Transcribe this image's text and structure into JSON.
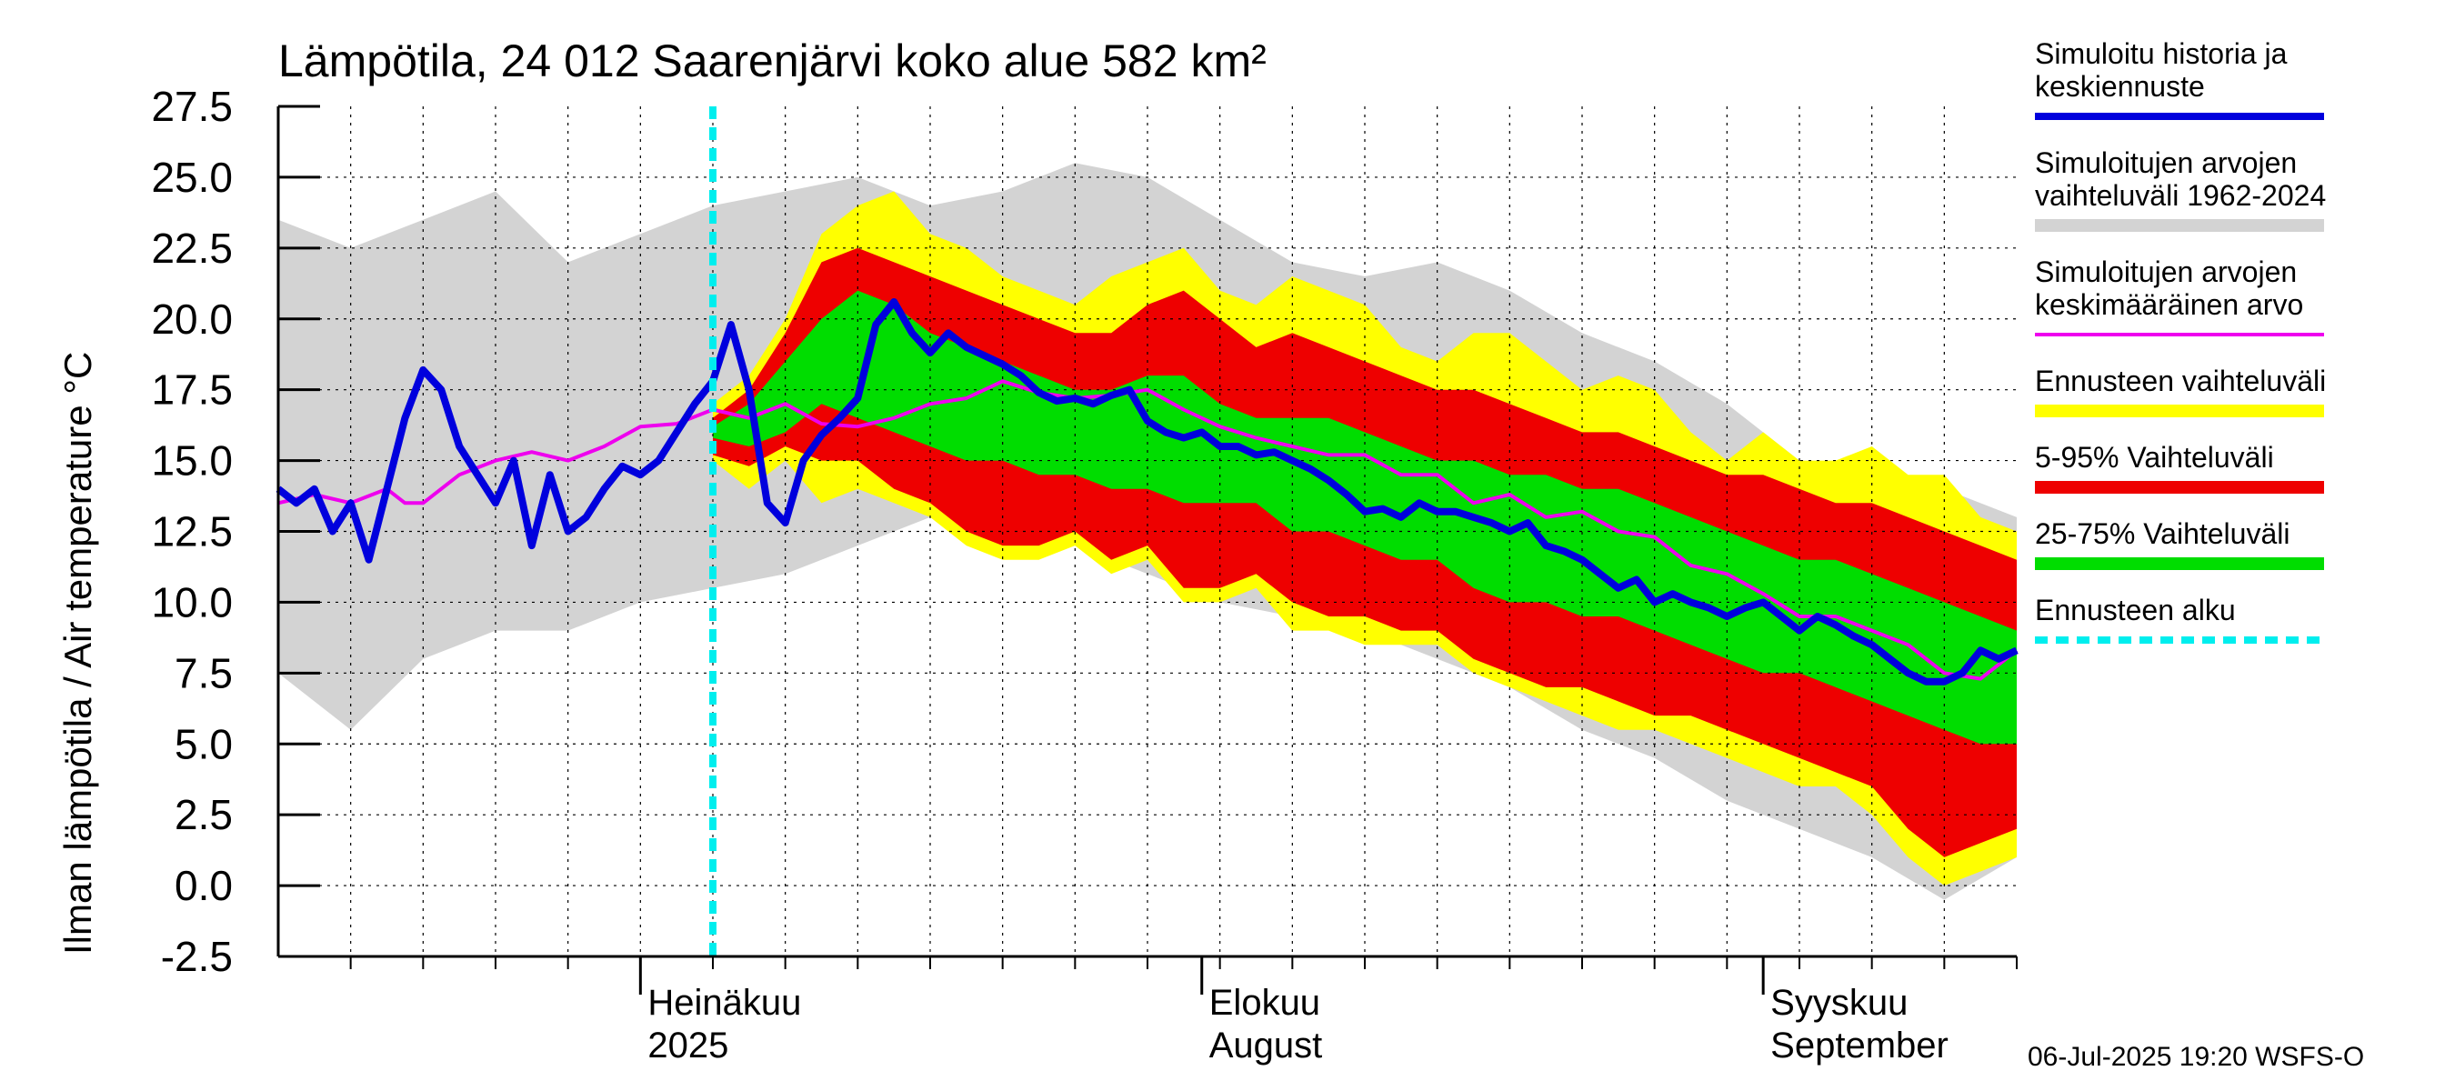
{
  "chart_data": {
    "type": "area",
    "title": "Lämpötila, 24 012 Saarenjärvi koko alue 582 km²",
    "ylabel": "Ilman lämpötila / Air temperature   °C",
    "xlabel": "",
    "ylim": [
      -2.5,
      27.5
    ],
    "yticks": [
      "27.5",
      "25.0",
      "22.5",
      "20.0",
      "17.5",
      "15.0",
      "12.5",
      "10.0",
      "7.5",
      "5.0",
      "2.5",
      "0.0",
      "-2.5"
    ],
    "x_day_range": [
      0,
      96
    ],
    "x_month_labels": [
      {
        "line1": "Heinäkuu",
        "line2": "2025",
        "day": 20
      },
      {
        "line1": "Elokuu",
        "line2": "August",
        "day": 51
      },
      {
        "line1": "Syyskuu",
        "line2": "September",
        "day": 82
      }
    ],
    "forecast_start_day": 24,
    "grid": true,
    "legend_position": "right",
    "footer": "06-Jul-2025 19:20 WSFS-O",
    "colors": {
      "history": "#0000dd",
      "hist_range": "#d3d3d3",
      "mean": "#ee00ee",
      "forecast_range": "#ffff00",
      "p5_95": "#ee0000",
      "p25_75": "#00dd00",
      "forecast_start": "#00eeee"
    },
    "legend": [
      {
        "label": "Simuloitu historia ja keskiennuste",
        "key": "history"
      },
      {
        "label": "Simuloitujen arvojen vaihteluväli 1962-2024",
        "key": "hist_range"
      },
      {
        "label": "Simuloitujen arvojen keskimääräinen arvo",
        "key": "mean"
      },
      {
        "label": "Ennusteen vaihteluväli",
        "key": "forecast_range"
      },
      {
        "label": "5-95% Vaihteluväli",
        "key": "p5_95"
      },
      {
        "label": "25-75% Vaihteluväli",
        "key": "p25_75"
      },
      {
        "label": "Ennusteen alku",
        "key": "forecast_start"
      }
    ],
    "series": [
      {
        "key": "hist_range",
        "x": [
          0,
          4,
          8,
          12,
          16,
          20,
          24,
          28,
          32,
          36,
          40,
          44,
          48,
          52,
          56,
          60,
          64,
          68,
          72,
          76,
          80,
          84,
          88,
          92,
          96
        ],
        "upper": [
          23.5,
          22.5,
          23.5,
          24.5,
          22.0,
          23.0,
          24.0,
          24.5,
          25.0,
          24.0,
          24.5,
          25.5,
          25.0,
          23.5,
          22.0,
          21.5,
          22.0,
          21.0,
          19.5,
          18.5,
          17.0,
          15.0,
          14.5,
          14.0,
          13.0
        ],
        "lower": [
          7.5,
          5.5,
          8.0,
          9.0,
          9.0,
          10.0,
          10.5,
          11.0,
          12.0,
          13.0,
          13.0,
          12.0,
          11.0,
          10.0,
          9.5,
          9.0,
          8.0,
          7.0,
          5.5,
          4.5,
          3.0,
          2.0,
          1.0,
          -0.5,
          1.0
        ]
      },
      {
        "key": "forecast_range",
        "x": [
          24,
          26,
          28,
          30,
          32,
          34,
          36,
          38,
          40,
          42,
          44,
          46,
          48,
          50,
          52,
          54,
          56,
          58,
          60,
          62,
          64,
          66,
          68,
          70,
          72,
          74,
          76,
          78,
          80,
          82,
          84,
          86,
          88,
          90,
          92,
          94,
          96
        ],
        "upper": [
          17.0,
          18.0,
          20.0,
          23.0,
          24.0,
          24.5,
          23.0,
          22.5,
          21.5,
          21.0,
          20.5,
          21.5,
          22.0,
          22.5,
          21.0,
          20.5,
          21.5,
          21.0,
          20.5,
          19.0,
          18.5,
          19.5,
          19.5,
          18.5,
          17.5,
          18.0,
          17.5,
          16.0,
          15.0,
          16.0,
          15.0,
          15.0,
          15.5,
          14.5,
          14.5,
          13.0,
          12.5
        ],
        "lower": [
          15.0,
          14.0,
          15.0,
          13.5,
          14.0,
          13.5,
          13.0,
          12.0,
          11.5,
          11.5,
          12.0,
          11.0,
          11.5,
          10.0,
          10.0,
          10.5,
          9.0,
          9.0,
          8.5,
          8.5,
          8.5,
          7.5,
          7.0,
          6.5,
          6.0,
          5.5,
          5.5,
          5.0,
          4.5,
          4.0,
          3.5,
          3.5,
          2.5,
          1.0,
          0.0,
          0.5,
          1.0
        ]
      },
      {
        "key": "p5_95",
        "x": [
          24,
          26,
          28,
          30,
          32,
          34,
          36,
          38,
          40,
          42,
          44,
          46,
          48,
          50,
          52,
          54,
          56,
          58,
          60,
          62,
          64,
          66,
          68,
          70,
          72,
          74,
          76,
          78,
          80,
          82,
          84,
          86,
          88,
          90,
          92,
          94,
          96
        ],
        "upper": [
          16.5,
          17.5,
          19.5,
          22.0,
          22.5,
          22.0,
          21.5,
          21.0,
          20.5,
          20.0,
          19.5,
          19.5,
          20.5,
          21.0,
          20.0,
          19.0,
          19.5,
          19.0,
          18.5,
          18.0,
          17.5,
          17.5,
          17.0,
          16.5,
          16.0,
          16.0,
          15.5,
          15.0,
          14.5,
          14.5,
          14.0,
          13.5,
          13.5,
          13.0,
          12.5,
          12.0,
          11.5
        ],
        "lower": [
          15.2,
          14.8,
          15.5,
          15.0,
          15.0,
          14.0,
          13.5,
          12.5,
          12.0,
          12.0,
          12.5,
          11.5,
          12.0,
          10.5,
          10.5,
          11.0,
          10.0,
          9.5,
          9.5,
          9.0,
          9.0,
          8.0,
          7.5,
          7.0,
          7.0,
          6.5,
          6.0,
          6.0,
          5.5,
          5.0,
          4.5,
          4.0,
          3.5,
          2.0,
          1.0,
          1.5,
          2.0
        ]
      },
      {
        "key": "p25_75",
        "x": [
          24,
          26,
          28,
          30,
          32,
          34,
          36,
          38,
          40,
          42,
          44,
          46,
          48,
          50,
          52,
          54,
          56,
          58,
          60,
          62,
          64,
          66,
          68,
          70,
          72,
          74,
          76,
          78,
          80,
          82,
          84,
          86,
          88,
          90,
          92,
          94,
          96
        ],
        "upper": [
          16.2,
          17.0,
          18.5,
          20.0,
          21.0,
          20.5,
          19.5,
          19.0,
          18.5,
          18.0,
          17.5,
          17.5,
          18.0,
          18.0,
          17.0,
          16.5,
          16.5,
          16.5,
          16.0,
          15.5,
          15.0,
          15.0,
          14.5,
          14.5,
          14.0,
          14.0,
          13.5,
          13.0,
          12.5,
          12.0,
          11.5,
          11.5,
          11.0,
          10.5,
          10.0,
          9.5,
          9.0
        ],
        "lower": [
          15.8,
          15.5,
          16.0,
          17.0,
          16.5,
          16.0,
          15.5,
          15.0,
          15.0,
          14.5,
          14.5,
          14.0,
          14.0,
          13.5,
          13.5,
          13.5,
          12.5,
          12.5,
          12.0,
          11.5,
          11.5,
          10.5,
          10.0,
          10.0,
          9.5,
          9.5,
          9.0,
          8.5,
          8.0,
          7.5,
          7.5,
          7.0,
          6.5,
          6.0,
          5.5,
          5.0,
          5.0
        ]
      },
      {
        "key": "mean",
        "x": [
          0,
          2,
          4,
          6,
          7,
          8,
          10,
          12,
          14,
          16,
          18,
          20,
          22,
          24,
          26,
          28,
          30,
          32,
          34,
          36,
          38,
          40,
          42,
          44,
          46,
          48,
          50,
          52,
          54,
          56,
          58,
          60,
          62,
          64,
          66,
          68,
          70,
          72,
          74,
          76,
          78,
          80,
          82,
          84,
          86,
          88,
          90,
          92,
          94,
          96
        ],
        "values": [
          13.5,
          13.8,
          13.5,
          14.0,
          13.5,
          13.5,
          14.5,
          15.0,
          15.3,
          15.0,
          15.5,
          16.2,
          16.3,
          16.8,
          16.5,
          17.0,
          16.3,
          16.2,
          16.5,
          17.0,
          17.2,
          17.8,
          17.4,
          17.2,
          17.3,
          17.5,
          16.8,
          16.2,
          15.8,
          15.5,
          15.2,
          15.2,
          14.5,
          14.5,
          13.5,
          13.8,
          13.0,
          13.2,
          12.5,
          12.3,
          11.3,
          11.0,
          10.3,
          9.5,
          9.5,
          9.0,
          8.5,
          7.5,
          7.3,
          8.3
        ]
      },
      {
        "key": "history",
        "x": [
          0,
          1,
          2,
          3,
          4,
          5,
          6,
          7,
          8,
          9,
          10,
          11,
          12,
          13,
          14,
          15,
          16,
          17,
          18,
          19,
          20,
          21,
          22,
          23,
          24,
          25,
          26,
          27,
          28,
          29,
          30,
          31,
          32,
          33,
          34,
          35,
          36,
          37,
          38,
          39,
          40,
          41,
          42,
          43,
          44,
          45,
          46,
          47,
          48,
          49,
          50,
          51,
          52,
          53,
          54,
          55,
          56,
          57,
          58,
          59,
          60,
          61,
          62,
          63,
          64,
          65,
          66,
          67,
          68,
          69,
          70,
          71,
          72,
          73,
          74,
          75,
          76,
          77,
          78,
          79,
          80,
          81,
          82,
          83,
          84,
          85,
          86,
          87,
          88,
          89,
          90,
          91,
          92,
          93,
          94,
          95,
          96
        ],
        "values": [
          14.0,
          13.5,
          14.0,
          12.5,
          13.5,
          11.5,
          14.0,
          16.5,
          18.2,
          17.5,
          15.5,
          14.5,
          13.5,
          15.0,
          12.0,
          14.5,
          12.5,
          13.0,
          14.0,
          14.8,
          14.5,
          15.0,
          16.0,
          17.0,
          17.8,
          19.8,
          17.5,
          13.5,
          12.8,
          15.0,
          15.9,
          16.5,
          17.2,
          19.8,
          20.6,
          19.5,
          18.8,
          19.5,
          19.0,
          18.7,
          18.4,
          18.0,
          17.4,
          17.1,
          17.2,
          17.0,
          17.3,
          17.5,
          16.4,
          16.0,
          15.8,
          16.0,
          15.5,
          15.5,
          15.2,
          15.3,
          15.0,
          14.7,
          14.3,
          13.8,
          13.2,
          13.3,
          13.0,
          13.5,
          13.2,
          13.2,
          13.0,
          12.8,
          12.5,
          12.8,
          12.0,
          11.8,
          11.5,
          11.0,
          10.5,
          10.8,
          10.0,
          10.3,
          10.0,
          9.8,
          9.5,
          9.8,
          10.0,
          9.5,
          9.0,
          9.5,
          9.2,
          8.8,
          8.5,
          8.0,
          7.5,
          7.2,
          7.2,
          7.5,
          8.3,
          8.0,
          8.3
        ]
      }
    ]
  }
}
